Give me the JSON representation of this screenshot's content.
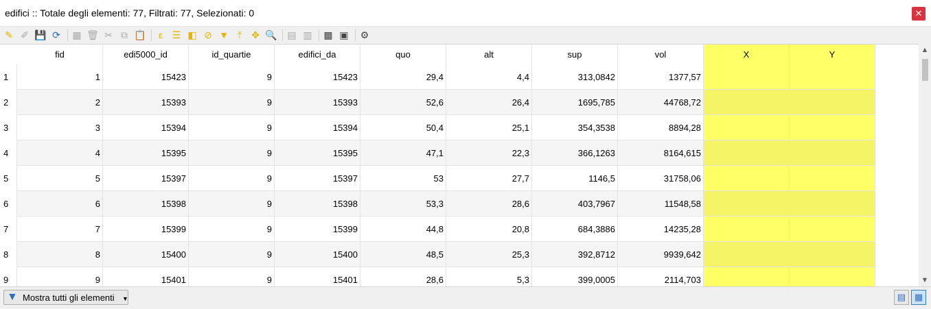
{
  "window": {
    "title": "edifici :: Totale degli elementi: 77, Filtrati: 77, Selezionati: 0",
    "close_glyph": "✕"
  },
  "toolbar": {
    "icons": [
      {
        "name": "toggle-editing-icon",
        "glyph": "✎",
        "enabled": true
      },
      {
        "name": "multi-edit-icon",
        "glyph": "✐",
        "enabled": false
      },
      {
        "name": "save-edits-icon",
        "glyph": "💾",
        "enabled": false
      },
      {
        "name": "reload-table-icon",
        "glyph": "⟳",
        "enabled": true
      },
      {
        "name": "add-feature-icon",
        "glyph": "▦",
        "enabled": false
      },
      {
        "name": "delete-feature-icon",
        "glyph": "🗑",
        "enabled": false
      },
      {
        "name": "cut-icon",
        "glyph": "✂",
        "enabled": false
      },
      {
        "name": "copy-icon",
        "glyph": "⧉",
        "enabled": false
      },
      {
        "name": "paste-icon",
        "glyph": "📋",
        "enabled": false
      },
      {
        "name": "select-by-expression-icon",
        "glyph": "ε",
        "enabled": true
      },
      {
        "name": "select-all-icon",
        "glyph": "☰",
        "enabled": true
      },
      {
        "name": "invert-selection-icon",
        "glyph": "◧",
        "enabled": true
      },
      {
        "name": "deselect-all-icon",
        "glyph": "⊘",
        "enabled": true
      },
      {
        "name": "filter-select-icon",
        "glyph": "▼",
        "enabled": true
      },
      {
        "name": "move-selection-top-icon",
        "glyph": "⤒",
        "enabled": true
      },
      {
        "name": "pan-to-selection-icon",
        "glyph": "✥",
        "enabled": true
      },
      {
        "name": "zoom-to-selection-icon",
        "glyph": "🔍",
        "enabled": true
      },
      {
        "name": "new-field-icon",
        "glyph": "▤",
        "enabled": false
      },
      {
        "name": "delete-field-icon",
        "glyph": "▥",
        "enabled": false
      },
      {
        "name": "field-calculator-icon",
        "glyph": "▩",
        "enabled": true
      },
      {
        "name": "conditional-formatting-icon",
        "glyph": "▣",
        "enabled": true
      },
      {
        "name": "actions-icon",
        "glyph": "⚙",
        "enabled": true
      }
    ]
  },
  "table": {
    "columns": [
      "fid",
      "edi5000_id",
      "id_quartie",
      "edifici_da",
      "quo",
      "alt",
      "sup",
      "vol",
      "X",
      "Y"
    ],
    "highlighted_columns": [
      "X",
      "Y"
    ],
    "highlight_color": "#ffff66",
    "rows": [
      {
        "num": "1",
        "cells": [
          "1",
          "15423",
          "9",
          "15423",
          "29,4",
          "4,4",
          "313,0842",
          "1377,57",
          "",
          ""
        ]
      },
      {
        "num": "2",
        "cells": [
          "2",
          "15393",
          "9",
          "15393",
          "52,6",
          "26,4",
          "1695,785",
          "44768,72",
          "",
          ""
        ]
      },
      {
        "num": "3",
        "cells": [
          "3",
          "15394",
          "9",
          "15394",
          "50,4",
          "25,1",
          "354,3538",
          "8894,28",
          "",
          ""
        ]
      },
      {
        "num": "4",
        "cells": [
          "4",
          "15395",
          "9",
          "15395",
          "47,1",
          "22,3",
          "366,1263",
          "8164,615",
          "",
          ""
        ]
      },
      {
        "num": "5",
        "cells": [
          "5",
          "15397",
          "9",
          "15397",
          "53",
          "27,7",
          "1146,5",
          "31758,06",
          "",
          ""
        ]
      },
      {
        "num": "6",
        "cells": [
          "6",
          "15398",
          "9",
          "15398",
          "53,3",
          "28,6",
          "403,7967",
          "11548,58",
          "",
          ""
        ]
      },
      {
        "num": "7",
        "cells": [
          "7",
          "15399",
          "9",
          "15399",
          "44,8",
          "20,8",
          "684,3886",
          "14235,28",
          "",
          ""
        ]
      },
      {
        "num": "8",
        "cells": [
          "8",
          "15400",
          "9",
          "15400",
          "48,5",
          "25,3",
          "392,8712",
          "9939,642",
          "",
          ""
        ]
      },
      {
        "num": "9",
        "cells": [
          "9",
          "15401",
          "9",
          "15401",
          "28,6",
          "5,3",
          "399,0005",
          "2114,703",
          "",
          ""
        ]
      }
    ]
  },
  "scrollbar": {
    "up_glyph": "▲",
    "down_glyph": "▼"
  },
  "statusbar": {
    "filter_label": "Mostra tutti gli elementi",
    "form_view_glyph": "▤",
    "table_view_glyph": "▦"
  }
}
